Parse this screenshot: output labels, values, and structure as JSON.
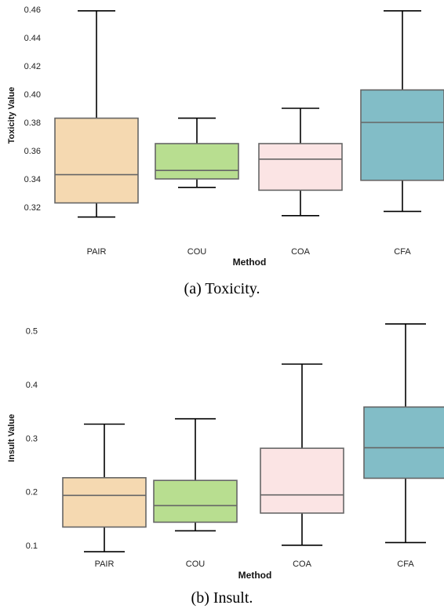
{
  "captions": {
    "a": "(a)  Toxicity.",
    "b": "(b)  Insult."
  },
  "colors": {
    "box_edge": "#666666",
    "whisker": "#000000",
    "PAIR": "#f5d9b1",
    "COU": "#b8de90",
    "COA": "#fbe4e4",
    "CFA": "#82bdc7"
  },
  "chart_data": [
    {
      "type": "box",
      "title": "",
      "xlabel": "Method",
      "ylabel": "Toxicity Value",
      "categories": [
        "PAIR",
        "COU",
        "COA",
        "CFA"
      ],
      "ylim": [
        0.31,
        0.46
      ],
      "yticks": [
        0.32,
        0.34,
        0.36,
        0.38,
        0.4,
        0.42,
        0.44,
        0.46
      ],
      "ytick_labels": [
        "0.32",
        "0.34",
        "0.36",
        "0.38",
        "0.40",
        "0.42",
        "0.44",
        "0.46"
      ],
      "grid": false,
      "boxes": [
        {
          "category": "PAIR",
          "whisker_low": 0.313,
          "q1": 0.323,
          "median": 0.343,
          "q3": 0.383,
          "whisker_high": 0.459
        },
        {
          "category": "COU",
          "whisker_low": 0.334,
          "q1": 0.34,
          "median": 0.346,
          "q3": 0.365,
          "whisker_high": 0.383
        },
        {
          "category": "COA",
          "whisker_low": 0.314,
          "q1": 0.332,
          "median": 0.354,
          "q3": 0.365,
          "whisker_high": 0.39
        },
        {
          "category": "CFA",
          "whisker_low": 0.317,
          "q1": 0.339,
          "median": 0.38,
          "q3": 0.403,
          "whisker_high": 0.459
        }
      ]
    },
    {
      "type": "box",
      "title": "",
      "xlabel": "Method",
      "ylabel": "Insult Value",
      "categories": [
        "PAIR",
        "COU",
        "COA",
        "CFA"
      ],
      "ylim": [
        0.08,
        0.52
      ],
      "yticks": [
        0.1,
        0.2,
        0.3,
        0.4,
        0.5
      ],
      "ytick_labels": [
        "0.1",
        "0.2",
        "0.3",
        "0.4",
        "0.5"
      ],
      "grid": false,
      "boxes": [
        {
          "category": "PAIR",
          "whisker_low": 0.088,
          "q1": 0.134,
          "median": 0.193,
          "q3": 0.226,
          "whisker_high": 0.326
        },
        {
          "category": "COU",
          "whisker_low": 0.127,
          "q1": 0.143,
          "median": 0.174,
          "q3": 0.221,
          "whisker_high": 0.336
        },
        {
          "category": "COA",
          "whisker_low": 0.1,
          "q1": 0.16,
          "median": 0.194,
          "q3": 0.281,
          "whisker_high": 0.438
        },
        {
          "category": "CFA",
          "whisker_low": 0.105,
          "q1": 0.225,
          "median": 0.282,
          "q3": 0.358,
          "whisker_high": 0.513
        }
      ]
    }
  ]
}
